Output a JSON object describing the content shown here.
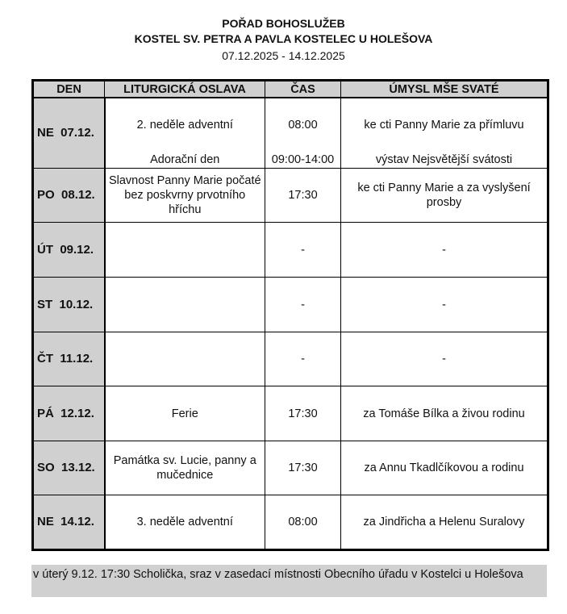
{
  "header": {
    "title": "POŘAD BOHOSLUŽEB",
    "church": "KOSTEL SV. PETRA A PAVLA KOSTELEC U HOLEŠOVA",
    "date_range": "07.12.2025 - 14.12.2025"
  },
  "table": {
    "columns": [
      "DEN",
      "LITURGICKÁ OSLAVA",
      "ČAS",
      "ÚMYSL MŠE SVATÉ"
    ],
    "rows": [
      {
        "day": "NE  07.12.",
        "celebration": "2. neděle adventní",
        "time": "08:00",
        "intention": "ke cti Panny Marie za přímluvu",
        "celebration2": "Adorační den",
        "time2": "09:00-14:00",
        "intention2": "výstav Nejsvětější svátosti"
      },
      {
        "day": "PO  08.12.",
        "celebration": "Slavnost Panny Marie počaté bez poskvrny prvotního hříchu",
        "time": "17:30",
        "intention": "ke cti Panny Marie a za vyslyšení prosby"
      },
      {
        "day": "ÚT  09.12.",
        "celebration": "",
        "time": "-",
        "intention": "-"
      },
      {
        "day": "ST  10.12.",
        "celebration": "",
        "time": "-",
        "intention": "-"
      },
      {
        "day": "ČT  11.12.",
        "celebration": "",
        "time": "-",
        "intention": "-"
      },
      {
        "day": "PÁ  12.12.",
        "celebration": "Ferie",
        "time": "17:30",
        "intention": "za Tomáše Bílka a živou rodinu"
      },
      {
        "day": "SO  13.12.",
        "celebration": "Památka sv. Lucie, panny a mučednice",
        "time": "17:30",
        "intention": "za Annu Tkadlčíkovou a rodinu"
      },
      {
        "day": "NE  14.12.",
        "celebration": "3. neděle adventní",
        "time": "08:00",
        "intention": "za Jindřicha a Helenu Suralovy"
      }
    ]
  },
  "note": "v úterý 9.12. 17:30 Scholička, sraz v zasedací místnosti Obecního úřadu v Kostelci u Holešova",
  "colors": {
    "header_bg": "#d0d0d0",
    "border": "#000000"
  }
}
